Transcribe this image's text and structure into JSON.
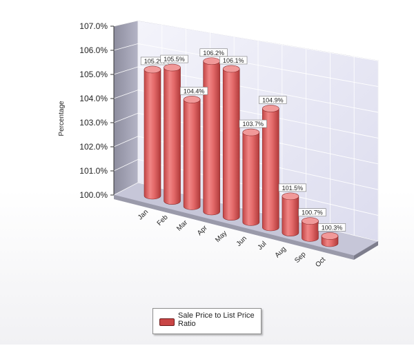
{
  "chart_data": {
    "type": "bar",
    "title": "",
    "xlabel": "",
    "ylabel": "Percentage",
    "ylim": [
      100,
      107
    ],
    "yticks": [
      "100.0%",
      "101.0%",
      "102.0%",
      "103.0%",
      "104.0%",
      "105.0%",
      "106.0%",
      "107.0%"
    ],
    "categories": [
      "Jan",
      "Feb",
      "Mar",
      "Apr",
      "May",
      "Jun",
      "Jul",
      "Aug",
      "Sep",
      "Oct"
    ],
    "series": [
      {
        "name": "Sale Price to List Price Ratio",
        "values": [
          105.2,
          105.5,
          104.4,
          106.2,
          106.1,
          103.7,
          104.9,
          101.5,
          100.7,
          100.3
        ],
        "labels": [
          "105.2%",
          "105.5%",
          "104.4%",
          "106.2%",
          "106.1%",
          "103.7%",
          "104.9%",
          "101.5%",
          "100.7%",
          "100.3%"
        ],
        "color": "#e06666"
      }
    ],
    "legend": "bottom",
    "grid": true,
    "style": "3d-cylinder"
  },
  "legend": {
    "label": "Sale Price to List Price Ratio"
  }
}
